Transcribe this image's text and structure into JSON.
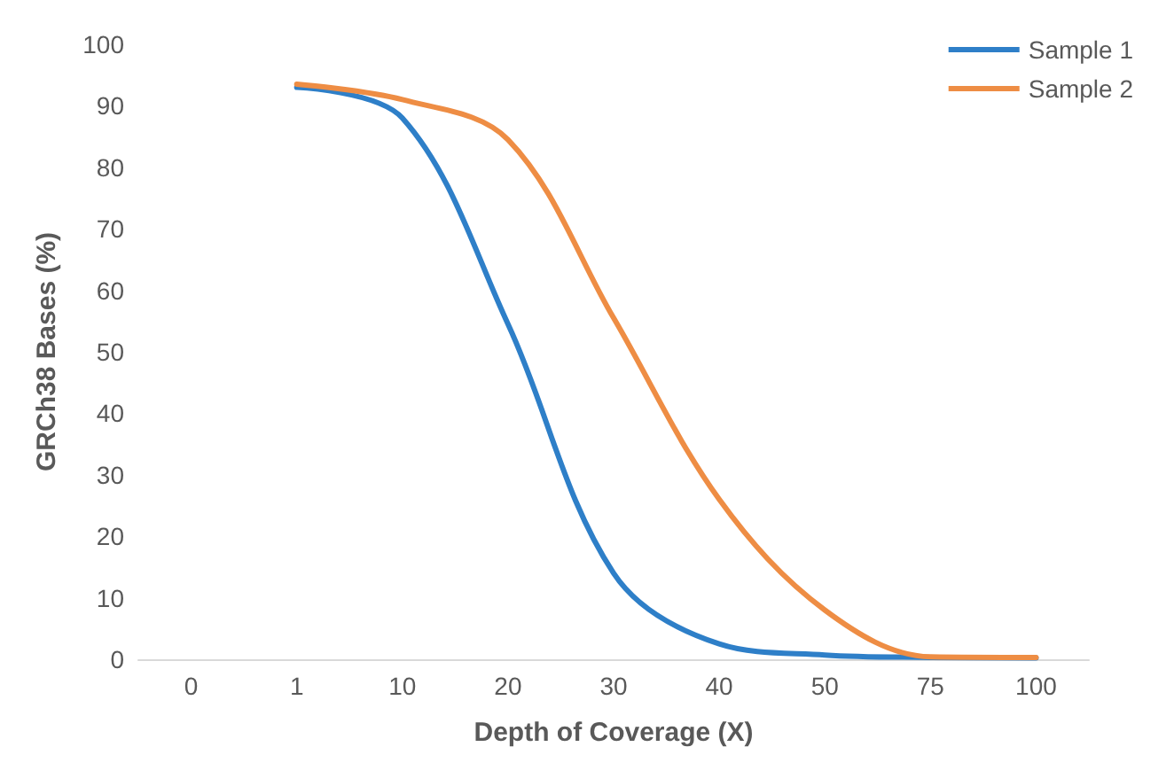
{
  "chart_data": {
    "type": "line",
    "xlabel": "Depth of Coverage (X)",
    "ylabel": "GRCh38 Bases (%)",
    "categories": [
      "0",
      "1",
      "10",
      "20",
      "30",
      "40",
      "50",
      "75",
      "100"
    ],
    "series": [
      {
        "name": "Sample 1",
        "color": "#2e7fc8",
        "values": [
          null,
          93,
          88,
          54.5,
          14,
          2.5,
          0.7,
          0.3,
          0.2
        ]
      },
      {
        "name": "Sample 2",
        "color": "#ee8d44",
        "values": [
          null,
          93.5,
          91,
          84.5,
          55.5,
          26,
          8,
          0.4,
          0.3
        ]
      }
    ],
    "ylim": [
      0,
      100
    ],
    "yticks": [
      0,
      10,
      20,
      30,
      40,
      50,
      60,
      70,
      80,
      90,
      100
    ],
    "grid": false,
    "legend": "top right",
    "marker": "none",
    "line_style": "solid"
  }
}
